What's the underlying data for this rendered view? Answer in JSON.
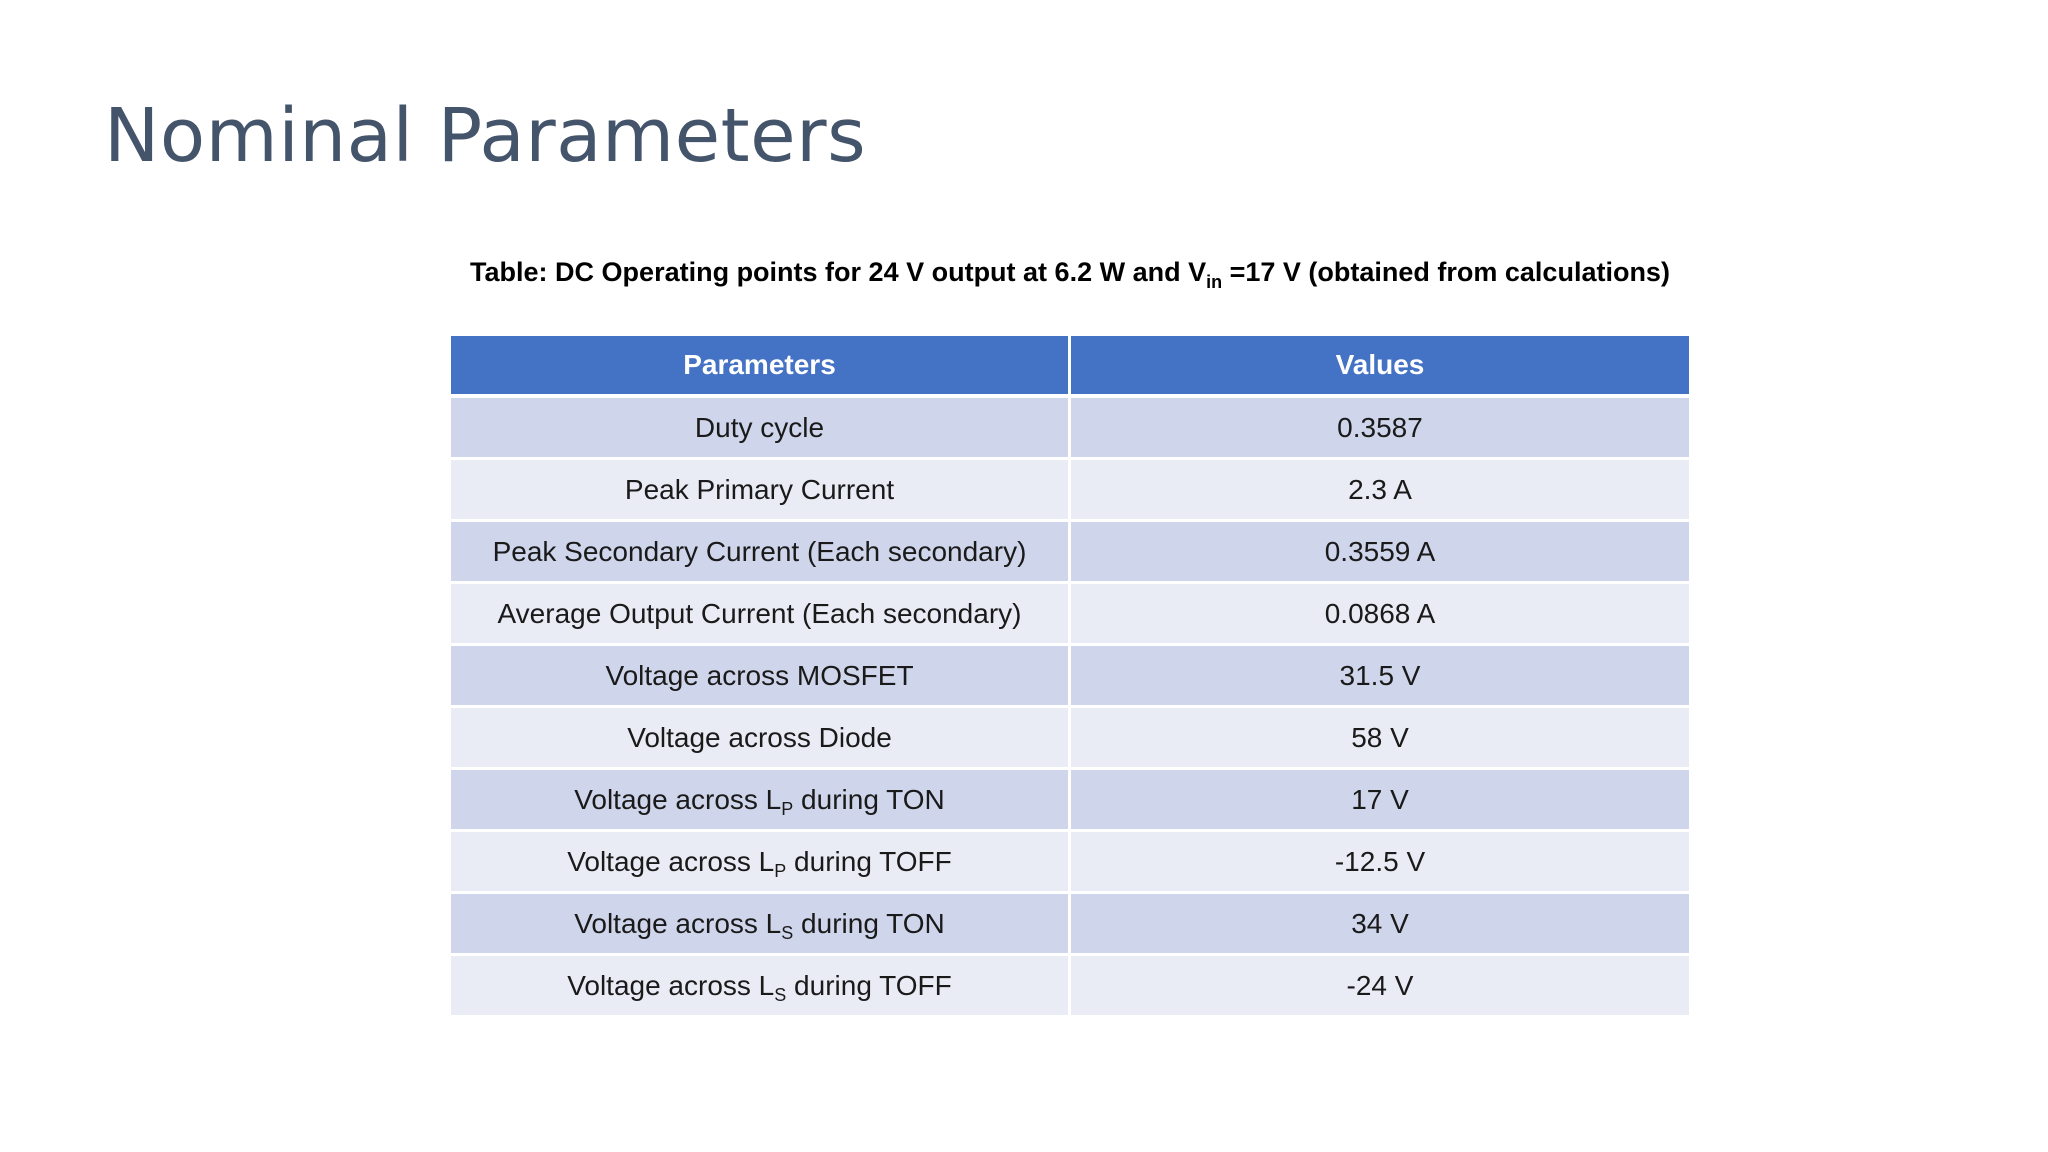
{
  "slide": {
    "title": "Nominal Parameters"
  },
  "caption": {
    "part1": "Table: DC Operating points for 24 V output at 6.2 W and V",
    "sub": "in",
    "part2": " =17 V (obtained from calculations)"
  },
  "table": {
    "headers": [
      "Parameters",
      "Values"
    ],
    "rows": [
      {
        "param": "Duty cycle",
        "value": "0.3587"
      },
      {
        "param": "Peak Primary Current",
        "value": "2.3 A"
      },
      {
        "param": "Peak Secondary Current (Each secondary)",
        "value": "0.3559 A"
      },
      {
        "param": "Average Output Current (Each secondary)",
        "value": "0.0868 A"
      },
      {
        "param": "Voltage across MOSFET",
        "value": "31.5 V"
      },
      {
        "param": "Voltage across Diode",
        "value": "58 V"
      },
      {
        "param_prefix": "Voltage across L",
        "param_sub": "P",
        "param_suffix": " during TON",
        "value": "17 V"
      },
      {
        "param_prefix": "Voltage across L",
        "param_sub": "P",
        "param_suffix": " during TOFF",
        "value": "-12.5 V"
      },
      {
        "param_prefix": "Voltage across L",
        "param_sub": "S",
        "param_suffix": " during TON",
        "value": "34 V"
      },
      {
        "param_prefix": "Voltage across L",
        "param_sub": "S",
        "param_suffix": " during TOFF",
        "value": "-24 V"
      }
    ]
  },
  "colors": {
    "title": "#44546a",
    "header_bg": "#4472c4",
    "row_dark": "#cfd5ea",
    "row_light": "#e9ebf5"
  }
}
